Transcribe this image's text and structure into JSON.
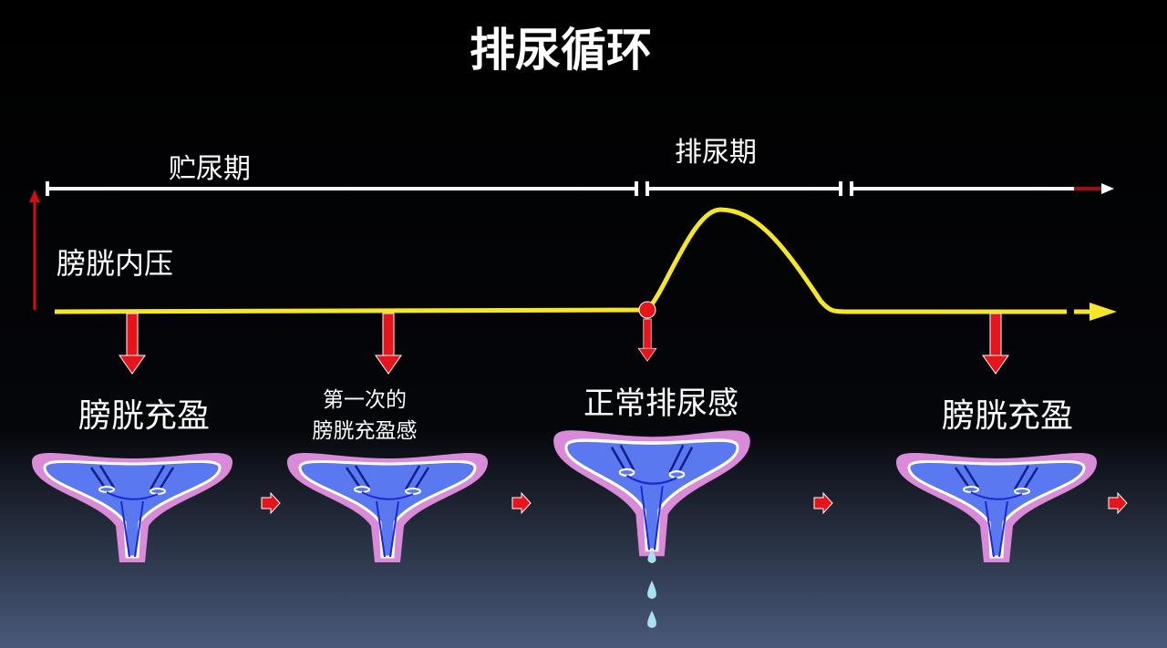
{
  "title": "排尿循环",
  "phases": {
    "storage": "贮尿期",
    "voiding": "排尿期"
  },
  "yaxis_label": "膀胱内压",
  "stages": [
    {
      "label": "膀胱充盈"
    },
    {
      "label_line1": "第一次的",
      "label_line2": "膀胱充盈感"
    },
    {
      "label": "正常排尿感"
    },
    {
      "label": "膀胱充盈"
    }
  ],
  "colors": {
    "pressure_curve": "#f5e628",
    "arrows": "#e8141c",
    "bladder_wall": "#d98ad9",
    "bladder_inner": "#5a78f0",
    "background_bottom": "#4a5a7a"
  }
}
